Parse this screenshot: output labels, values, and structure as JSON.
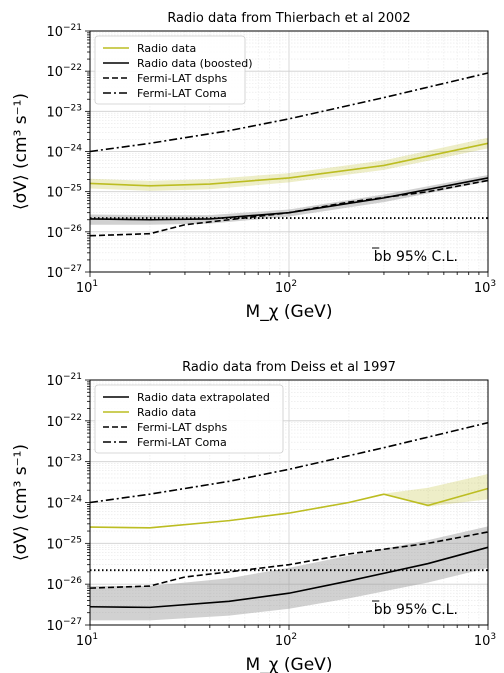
{
  "chart_data": [
    {
      "type": "line",
      "title": "Radio data from Thierbach et al 2002",
      "xlabel": "M_χ (GeV)",
      "ylabel": "⟨σV⟩ (cm³ s⁻¹)",
      "xscale": "log",
      "yscale": "log",
      "xlim": [
        10,
        1000
      ],
      "ylim": [
        1e-27,
        1e-21
      ],
      "xticks": [
        10,
        100,
        1000
      ],
      "xtick_labels": [
        "10",
        "10",
        "10"
      ],
      "xtick_exps": [
        "1",
        "2",
        "3"
      ],
      "yticks": [
        1e-27,
        1e-26,
        1e-25,
        1e-24,
        1e-23,
        1e-22,
        1e-21
      ],
      "ytick_labels": [
        "10",
        "10",
        "10",
        "10",
        "10",
        "10",
        "10"
      ],
      "ytick_exps": [
        "−27",
        "−26",
        "−25",
        "−24",
        "−23",
        "−22",
        "−21"
      ],
      "grid": true,
      "legend_position": "top-left",
      "annotation": "b̅b 95% C.L.",
      "series": [
        {
          "name": "Radio data",
          "color": "#bcbd22",
          "style": "solid",
          "x": [
            10,
            20,
            40,
            100,
            300,
            1000
          ],
          "y": [
            1.6e-25,
            1.4e-25,
            1.55e-25,
            2.2e-25,
            4.5e-25,
            1.6e-24
          ],
          "band_low": [
            1.2e-25,
            1.05e-25,
            1.15e-25,
            1.7e-25,
            3.5e-25,
            1.2e-24
          ],
          "band_high": [
            2.1e-25,
            1.85e-25,
            2.05e-25,
            2.9e-25,
            6e-25,
            2.2e-24
          ]
        },
        {
          "name": "Radio data (boosted)",
          "color": "#000000",
          "style": "solid",
          "x": [
            10,
            20,
            40,
            100,
            300,
            1000
          ],
          "y": [
            2.1e-26,
            2e-26,
            2.1e-26,
            3e-26,
            7e-26,
            2.2e-25
          ],
          "band_low": [
            1.5e-26,
            1.5e-26,
            1.6e-26,
            2.4e-26,
            5.5e-26,
            1.8e-25
          ],
          "band_high": [
            2.7e-26,
            2.6e-26,
            2.6e-26,
            3.6e-26,
            8.5e-26,
            2.6e-25
          ]
        },
        {
          "name": "Fermi-LAT dsphs",
          "color": "#000000",
          "style": "dashed",
          "x": [
            10,
            20,
            30,
            50,
            100,
            200,
            500,
            1000
          ],
          "y": [
            8e-27,
            9e-27,
            1.5e-26,
            2e-26,
            3e-26,
            5.5e-26,
            1e-25,
            1.9e-25
          ]
        },
        {
          "name": "Fermi-LAT Coma",
          "color": "#000000",
          "style": "dashdot",
          "x": [
            10,
            20,
            50,
            100,
            300,
            1000
          ],
          "y": [
            1e-24,
            1.6e-24,
            3.3e-24,
            6.5e-24,
            2.2e-23,
            9e-23
          ]
        },
        {
          "color": "#000000",
          "style": "dotted",
          "x": [
            10,
            1000
          ],
          "y": [
            2.2e-26,
            2.2e-26
          ]
        }
      ]
    },
    {
      "type": "line",
      "title": "Radio data from Deiss et al 1997",
      "xlabel": "M_χ (GeV)",
      "ylabel": "⟨σV⟩ (cm³ s⁻¹)",
      "xscale": "log",
      "yscale": "log",
      "xlim": [
        10,
        1000
      ],
      "ylim": [
        1e-27,
        1e-21
      ],
      "xticks": [
        10,
        100,
        1000
      ],
      "xtick_labels": [
        "10",
        "10",
        "10"
      ],
      "xtick_exps": [
        "1",
        "2",
        "3"
      ],
      "yticks": [
        1e-27,
        1e-26,
        1e-25,
        1e-24,
        1e-23,
        1e-22,
        1e-21
      ],
      "ytick_labels": [
        "10",
        "10",
        "10",
        "10",
        "10",
        "10",
        "10"
      ],
      "ytick_exps": [
        "−27",
        "−26",
        "−25",
        "−24",
        "−23",
        "−22",
        "−21"
      ],
      "grid": true,
      "legend_position": "top-left",
      "annotation": "b̅b 95% C.L.",
      "series": [
        {
          "name": "Radio data extrapolated",
          "color": "#000000",
          "style": "solid",
          "x": [
            10,
            20,
            50,
            100,
            200,
            500,
            1000
          ],
          "y": [
            2.8e-27,
            2.7e-27,
            3.8e-27,
            6e-27,
            1.2e-26,
            3.2e-26,
            8e-26
          ],
          "band_low": [
            1.3e-27,
            1.3e-27,
            1.7e-27,
            2.5e-27,
            4.5e-27,
            1.1e-26,
            2.5e-26
          ],
          "band_high": [
            9e-27,
            9e-27,
            1.4e-26,
            2.5e-26,
            5e-26,
            1.2e-25,
            2.6e-25
          ]
        },
        {
          "name": "Radio data",
          "color": "#bcbd22",
          "style": "solid",
          "x": [
            10,
            20,
            50,
            100,
            200,
            300,
            500,
            1000
          ],
          "y": [
            2.5e-25,
            2.4e-25,
            3.6e-25,
            5.5e-25,
            1e-24,
            1.6e-24,
            8.5e-25,
            2.2e-24
          ],
          "band_low": [
            2.4e-25,
            2.3e-25,
            3.5e-25,
            5.3e-25,
            9.7e-25,
            1.55e-24,
            8e-25,
            1.2e-24
          ],
          "band_high": [
            2.6e-25,
            2.5e-25,
            3.7e-25,
            5.7e-25,
            1.05e-24,
            1.65e-24,
            2.3e-24,
            5e-24
          ]
        },
        {
          "name": "Fermi-LAT dsphs",
          "color": "#000000",
          "style": "dashed",
          "x": [
            10,
            20,
            30,
            50,
            100,
            200,
            500,
            1000
          ],
          "y": [
            8e-27,
            9e-27,
            1.5e-26,
            2e-26,
            3e-26,
            5.5e-26,
            1e-25,
            1.9e-25
          ]
        },
        {
          "name": "Fermi-LAT Coma",
          "color": "#000000",
          "style": "dashdot",
          "x": [
            10,
            20,
            50,
            100,
            300,
            1000
          ],
          "y": [
            1e-24,
            1.6e-24,
            3.3e-24,
            6.5e-24,
            2.2e-23,
            9e-23
          ]
        },
        {
          "color": "#000000",
          "style": "dotted",
          "x": [
            10,
            1000
          ],
          "y": [
            2.2e-26,
            2.2e-26
          ]
        }
      ]
    }
  ]
}
